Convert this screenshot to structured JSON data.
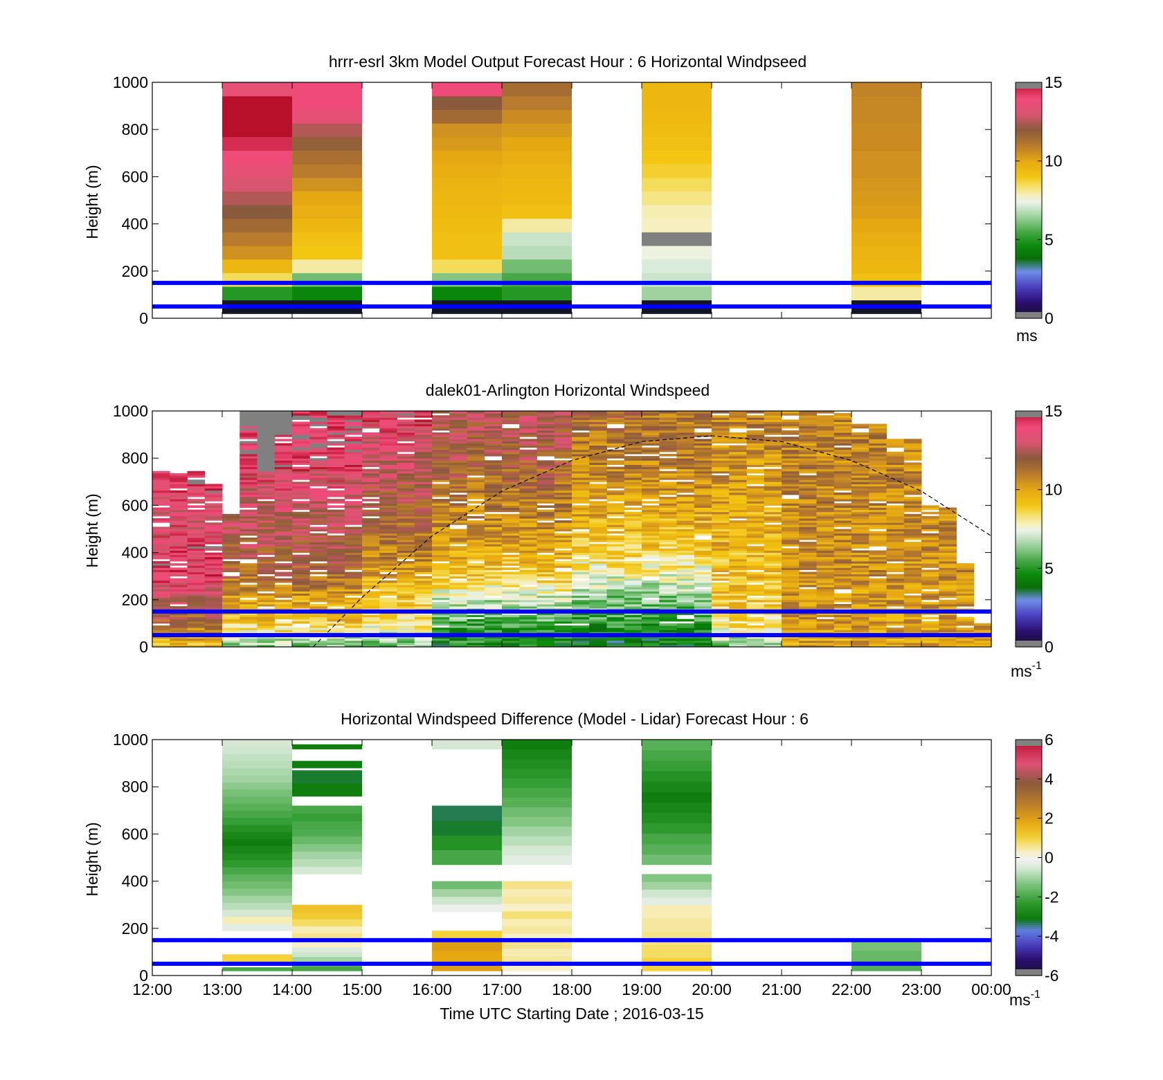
{
  "xaxis": {
    "ticks": [
      "12:00",
      "13:00",
      "14:00",
      "15:00",
      "16:00",
      "17:00",
      "18:00",
      "19:00",
      "20:00",
      "21:00",
      "22:00",
      "23:00",
      "00:00"
    ],
    "label": "Time UTC  Starting Date ; 2016-03-15"
  },
  "chart_data": [
    {
      "type": "heatmap",
      "title": "hrrr-esrl 3km Model Output   Forecast Hour : 6 Horizontal Windpseed",
      "ylabel": "Height (m)",
      "ylim": [
        0,
        1000
      ],
      "yticks": [
        0,
        200,
        400,
        600,
        800,
        1000
      ],
      "colorbar": {
        "min": 0,
        "max": 15,
        "ticks": [
          0,
          5,
          10,
          15
        ],
        "unit_label": "ms",
        "unit_exp": ""
      },
      "reference_lines_m": [
        50,
        150
      ],
      "columns": [
        {
          "x": "13:00",
          "values": [
            0,
            5,
            8.5,
            9.5,
            10.5,
            11,
            11.5,
            12,
            12.5,
            13,
            13.5,
            14,
            14.5,
            15,
            15,
            15,
            13.5,
            15
          ]
        },
        {
          "x": "14:00",
          "values": [
            0,
            4.5,
            6,
            8,
            9,
            9.2,
            9.5,
            9.8,
            10,
            10.5,
            11,
            11.3,
            11.8,
            12.5,
            13.5,
            14,
            14,
            14
          ]
        },
        {
          "x": "16:00",
          "values": [
            0,
            4.5,
            6.2,
            8.5,
            9.2,
            9.2,
            9.3,
            9.4,
            9.5,
            9.6,
            9.8,
            10,
            10.3,
            10.5,
            11.5,
            12,
            14,
            14
          ]
        },
        {
          "x": "17:00",
          "values": [
            0,
            5,
            5.5,
            6,
            6.8,
            7,
            8,
            9.2,
            9.4,
            9.5,
            9.6,
            9.8,
            10,
            10.3,
            10.6,
            11,
            11.4,
            11.8
          ]
        },
        {
          "x": "19:00",
          "values": [
            0,
            6.5,
            7,
            7.2,
            7.5,
            15.5,
            7.8,
            7.9,
            8.2,
            8.5,
            8.8,
            9,
            9.2,
            9.3,
            9.4,
            9.5,
            9.5,
            9.6
          ]
        },
        {
          "x": "22:00",
          "values": [
            0,
            8,
            9.2,
            9.5,
            9.6,
            9.8,
            10,
            10.2,
            10.3,
            10.4,
            10.5,
            10.5,
            10.6,
            10.6,
            10.7,
            10.7,
            10.8,
            10.8
          ]
        }
      ]
    },
    {
      "type": "heatmap",
      "title": "dalek01-Arlington  Horizontal Windspeed",
      "ylabel": "Height (m)",
      "ylim": [
        0,
        1000
      ],
      "yticks": [
        0,
        200,
        400,
        600,
        800,
        1000
      ],
      "colorbar": {
        "min": 0,
        "max": 15,
        "ticks": [
          0,
          5,
          10,
          15
        ],
        "unit_label": "ms",
        "unit_exp": "-1"
      },
      "reference_lines_m": [
        50,
        150
      ],
      "columns_times_utc": [
        12.0,
        12.25,
        12.5,
        12.75,
        13.0,
        13.25,
        13.5,
        13.75,
        14.0,
        14.25,
        14.5,
        14.75,
        15.0,
        15.25,
        15.5,
        15.75,
        16.0,
        16.25,
        16.5,
        16.75,
        17.0,
        17.25,
        17.5,
        17.75,
        18.0,
        18.25,
        18.5,
        18.75,
        19.0,
        19.25,
        19.5,
        19.75,
        20.0,
        20.25,
        20.5,
        20.75,
        21.0,
        21.25,
        21.5,
        21.75,
        22.0,
        22.25,
        22.5,
        22.75,
        23.0,
        23.25,
        23.5,
        23.75
      ],
      "column_top_m": [
        740,
        740,
        740,
        690,
        560,
        1000,
        1000,
        1000,
        1000,
        1000,
        1000,
        1000,
        1000,
        1000,
        1000,
        1000,
        1000,
        1000,
        1000,
        1000,
        1000,
        1000,
        1000,
        1000,
        1000,
        1000,
        1000,
        1000,
        1000,
        1000,
        1000,
        1000,
        1000,
        1000,
        1000,
        1000,
        1000,
        1000,
        1000,
        1000,
        940,
        940,
        880,
        880,
        600,
        590,
        350,
        100
      ],
      "gray_above_m": [
        740,
        740,
        740,
        690,
        560,
        930,
        740,
        900,
        1000,
        1000,
        1000,
        1000,
        1000,
        1000,
        1000,
        1000,
        1000,
        1000,
        1000,
        1000,
        1000,
        1000,
        1000,
        1000,
        1000,
        1000,
        1000,
        1000,
        1000,
        1000,
        1000,
        1000,
        1000,
        1000,
        1000,
        1000,
        1000,
        1000,
        1000,
        1000,
        1000,
        1000,
        1000,
        1000,
        1000,
        1000,
        1000,
        1000
      ],
      "speed_profile_heights_m": [
        0,
        100,
        200,
        300,
        400,
        500,
        600,
        700,
        800,
        900,
        1000
      ],
      "speed_profiles": [
        {
          "from_hour": 12,
          "to_hour": 13,
          "values": [
            9,
            11.5,
            13,
            14,
            14,
            13.5,
            13.5,
            14.5,
            14.5,
            14.5,
            14.5
          ]
        },
        {
          "from_hour": 13,
          "to_hour": 15,
          "values": [
            6,
            9,
            10,
            11.5,
            12,
            12.5,
            13,
            13.5,
            14,
            14.5,
            15
          ]
        },
        {
          "from_hour": 15,
          "to_hour": 16,
          "values": [
            6,
            8,
            9,
            10,
            11,
            11.5,
            12,
            12.5,
            13,
            13.5,
            14
          ]
        },
        {
          "from_hour": 16,
          "to_hour": 18,
          "values": [
            4.5,
            5.5,
            7,
            9,
            9.8,
            10.5,
            11,
            11.5,
            12,
            12.3,
            12.5
          ]
        },
        {
          "from_hour": 18,
          "to_hour": 20,
          "values": [
            4,
            5,
            6,
            7.5,
            8.8,
            9.5,
            10,
            10.5,
            11,
            11.2,
            11.5
          ]
        },
        {
          "from_hour": 20,
          "to_hour": 21,
          "values": [
            6,
            8.5,
            9,
            9.3,
            9.5,
            9.7,
            9.9,
            10.2,
            10.5,
            10.7,
            11
          ]
        },
        {
          "from_hour": 21,
          "to_hour": 24,
          "values": [
            10,
            10.2,
            10.3,
            10.5,
            10.6,
            10.6,
            10.7,
            10.8,
            10.8,
            10.8,
            10.8
          ]
        }
      ],
      "boundary_curve_points_m": [
        {
          "x": 14.3,
          "y": 0
        },
        {
          "x": 15,
          "y": 210
        },
        {
          "x": 16,
          "y": 470
        },
        {
          "x": 17,
          "y": 660
        },
        {
          "x": 18,
          "y": 790
        },
        {
          "x": 19,
          "y": 870
        },
        {
          "x": 20,
          "y": 895
        },
        {
          "x": 21,
          "y": 870
        },
        {
          "x": 22,
          "y": 790
        },
        {
          "x": 23,
          "y": 660
        },
        {
          "x": 24,
          "y": 470
        }
      ]
    },
    {
      "type": "heatmap",
      "title": "Horizontal Windspeed Difference (Model - Lidar) Forecast Hour : 6",
      "ylabel": "Height (m)",
      "ylim": [
        0,
        1000
      ],
      "yticks": [
        0,
        200,
        400,
        600,
        800,
        1000
      ],
      "colorbar": {
        "min": -6,
        "max": 6,
        "ticks": [
          -6,
          -4,
          -2,
          0,
          2,
          4,
          6
        ],
        "unit_label": "ms",
        "unit_exp": "-1"
      },
      "reference_lines_m": [
        50,
        150
      ],
      "columns": [
        {
          "x": "13:00",
          "segments": [
            {
              "from_m": 20,
              "to_m": 35,
              "values": [
                -2
              ]
            },
            {
              "from_m": 60,
              "to_m": 90,
              "values": [
                1
              ]
            },
            {
              "from_m": 190,
              "to_m": 1000,
              "values": [
                -0.3,
                0.4,
                -0.5,
                -0.8,
                -1,
                -1.3,
                -1.5,
                -1.7,
                -2,
                -2.3,
                -2.6,
                -2.8,
                -3,
                -2.8,
                -2.5,
                -2.2,
                -2,
                -1.8,
                -1.6,
                -1.4,
                -1.2,
                -1,
                -0.9,
                -0.8,
                -0.7,
                -0.6,
                -0.5
              ]
            }
          ]
        },
        {
          "x": "14:00",
          "segments": [
            {
              "from_m": 20,
              "to_m": 120,
              "values": [
                -2,
                -1.5,
                -1,
                -0.6,
                -0.4
              ]
            },
            {
              "from_m": 120,
              "to_m": 300,
              "values": [
                0.3,
                0.6,
                0.4,
                0.8,
                1.2,
                1.3
              ]
            },
            {
              "from_m": 430,
              "to_m": 720,
              "values": [
                -0.5,
                -0.8,
                -1,
                -1.3,
                -1.6,
                -1.9,
                -2,
                -2.2,
                -2
              ]
            },
            {
              "from_m": 760,
              "to_m": 870,
              "values": [
                -3,
                -3.2
              ]
            },
            {
              "from_m": 880,
              "to_m": 910,
              "values": [
                -3
              ]
            },
            {
              "from_m": 960,
              "to_m": 980,
              "values": [
                -3
              ]
            }
          ]
        },
        {
          "x": "16:00",
          "segments": [
            {
              "from_m": 20,
              "to_m": 190,
              "values": [
                2,
                1.8,
                2,
                1
              ]
            },
            {
              "from_m": 270,
              "to_m": 400,
              "values": [
                -0.2,
                -0.6,
                -1,
                -1.5
              ]
            },
            {
              "from_m": 470,
              "to_m": 720,
              "values": [
                -2,
                -2.5,
                -3.2,
                -3.3
              ]
            },
            {
              "from_m": 960,
              "to_m": 1000,
              "values": [
                -0.5
              ]
            }
          ]
        },
        {
          "x": "17:00",
          "segments": [
            {
              "from_m": 20,
              "to_m": 400,
              "values": [
                0.3,
                0.5,
                0.4,
                0.6,
                0.3,
                0.5,
                0.4,
                0.7,
                0.3,
                0.5,
                0.4,
                0.6
              ]
            },
            {
              "from_m": 470,
              "to_m": 1000,
              "values": [
                -0.3,
                -0.5,
                -0.8,
                -1,
                -1.3,
                -1.5,
                -1.8,
                -2,
                -2.2,
                -2.4,
                -2.6,
                -2.8,
                -3
              ]
            }
          ]
        },
        {
          "x": "19:00",
          "segments": [
            {
              "from_m": 20,
              "to_m": 300,
              "values": [
                1,
                0.8,
                0.6,
                0.5,
                0.4
              ]
            },
            {
              "from_m": 300,
              "to_m": 430,
              "values": [
                -0.3,
                -0.6,
                -1,
                -1.3
              ]
            },
            {
              "from_m": 470,
              "to_m": 1000,
              "values": [
                -1.5,
                -1.8,
                -2,
                -2.3,
                -2.6,
                -2.8,
                -3,
                -2.8,
                -2.5,
                -2.2,
                -2,
                -1.8
              ]
            }
          ]
        },
        {
          "x": "22:00",
          "segments": [
            {
              "from_m": 20,
              "to_m": 150,
              "values": [
                -1.8,
                -1.6,
                -1.4
              ]
            }
          ]
        }
      ]
    }
  ]
}
